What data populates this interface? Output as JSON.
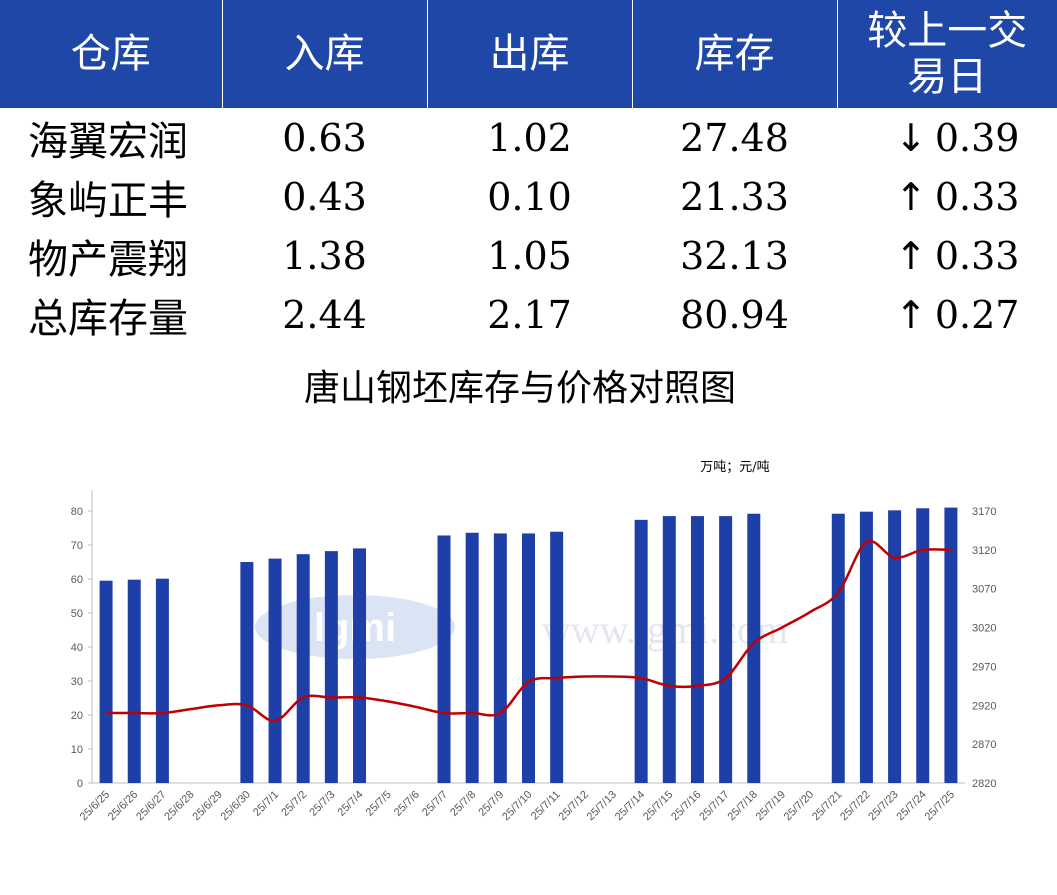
{
  "table": {
    "headers": [
      "仓库",
      "入库",
      "出库",
      "库存",
      "较上一交易日"
    ],
    "rows": [
      {
        "name": "海翼宏润",
        "in": "0.63",
        "out": "1.02",
        "stock": "27.48",
        "dir": "down",
        "change": "0.39"
      },
      {
        "name": "象屿正丰",
        "in": "0.43",
        "out": "0.10",
        "stock": "21.33",
        "dir": "up",
        "change": "0.33"
      },
      {
        "name": "物产震翔",
        "in": "1.38",
        "out": "1.05",
        "stock": "32.13",
        "dir": "up",
        "change": "0.33"
      },
      {
        "name": "总库存量",
        "in": "2.44",
        "out": "2.17",
        "stock": "80.94",
        "dir": "up",
        "change": "0.27"
      }
    ],
    "arrow_up": "↑",
    "arrow_down": "↓",
    "colors": {
      "header_bg": "#1F47A8",
      "up": "#E00000",
      "down": "#108A10"
    }
  },
  "chart_data": {
    "type": "bar+line",
    "title": "唐山钢坯库存与价格对照图",
    "unit_note": "万吨；元/吨",
    "watermark": "www.lgmi.com",
    "categories": [
      "25/6/25",
      "25/6/26",
      "25/6/27",
      "25/6/28",
      "25/6/29",
      "25/6/30",
      "25/7/1",
      "25/7/2",
      "25/7/3",
      "25/7/4",
      "25/7/5",
      "25/7/6",
      "25/7/7",
      "25/7/8",
      "25/7/9",
      "25/7/10",
      "25/7/11",
      "25/7/12",
      "25/7/13",
      "25/7/14",
      "25/7/15",
      "25/7/16",
      "25/7/17",
      "25/7/18",
      "25/7/19",
      "25/7/20",
      "25/7/21",
      "25/7/22",
      "25/7/23",
      "25/7/24",
      "25/7/25"
    ],
    "bar_series": {
      "axis": "left",
      "color": "#1F3FA8",
      "values": [
        59.5,
        59.8,
        60.1,
        null,
        null,
        65,
        66,
        67.3,
        68.2,
        69,
        null,
        null,
        72.8,
        73.6,
        73.4,
        73.4,
        73.9,
        null,
        null,
        77.4,
        78.5,
        78.5,
        78.5,
        79.2,
        null,
        null,
        79.2,
        79.8,
        80.2,
        80.8,
        81
      ]
    },
    "line_series": {
      "axis": "right",
      "color": "#C00000",
      "values": [
        2910,
        2910,
        2910,
        2915,
        2920,
        2920,
        2900,
        2930,
        2930,
        2930,
        2925,
        2918,
        2910,
        2910,
        2910,
        2950,
        2955,
        2957,
        2957,
        2955,
        2945,
        2945,
        2955,
        3000,
        3020,
        3040,
        3065,
        3130,
        3110,
        3120,
        3120
      ]
    },
    "left_axis": {
      "min": 0,
      "max": 80,
      "ticks": [
        0,
        10,
        20,
        30,
        40,
        50,
        60,
        70,
        80
      ]
    },
    "right_axis": {
      "min": 2820,
      "max": 3170,
      "ticks": [
        2820,
        2870,
        2920,
        2970,
        3020,
        3070,
        3120,
        3170
      ]
    }
  }
}
